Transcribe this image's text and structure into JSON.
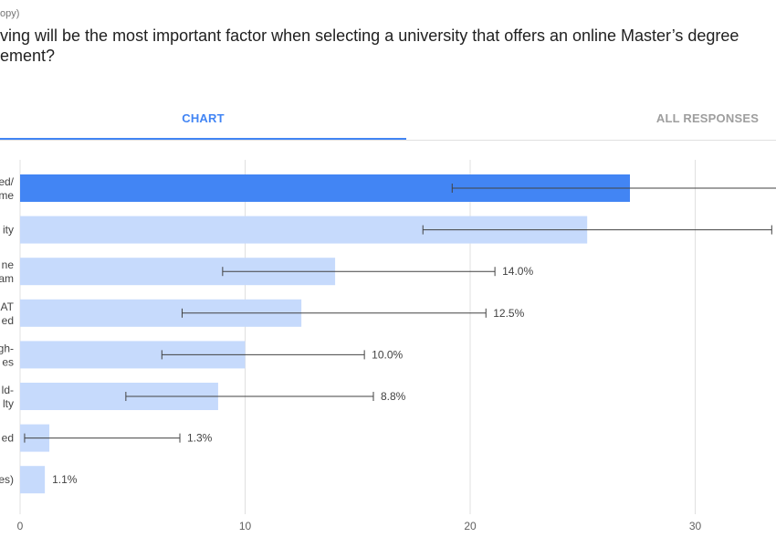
{
  "header": {
    "subtitle": "opy)",
    "question_line1": "ving will be the most important factor when selecting a university that offers an online Master’s degree",
    "question_line2": "ement?"
  },
  "tabs": [
    {
      "label": "CHART",
      "active": true
    },
    {
      "label": "ALL RESPONSES",
      "active": false
    }
  ],
  "colors": {
    "highlight_bar": "#4285f4",
    "bar": "#c6dafc",
    "error_bar": "#424242",
    "grid": "#e0e0e0"
  },
  "chart_data": {
    "type": "bar",
    "orientation": "horizontal",
    "categories": [
      [
        "ed/",
        "me"
      ],
      [
        "ity"
      ],
      [
        "ne",
        "am"
      ],
      [
        "AT",
        "ed"
      ],
      [
        "gh-",
        "es"
      ],
      [
        "ld-",
        "lty"
      ],
      [
        "ed"
      ],
      [
        "es)"
      ]
    ],
    "values": [
      27.1,
      25.2,
      14.0,
      12.5,
      10.0,
      8.8,
      1.3,
      1.1
    ],
    "value_labels": [
      "",
      "",
      "14.0%",
      "12.5%",
      "10.0%",
      "8.8%",
      "1.3%",
      "1.1%"
    ],
    "error_bars": [
      [
        19.2,
        35.0
      ],
      [
        17.9,
        33.4
      ],
      [
        9.0,
        21.1
      ],
      [
        7.2,
        20.7
      ],
      [
        6.3,
        15.3
      ],
      [
        4.7,
        15.7
      ],
      [
        0.2,
        7.1
      ],
      null
    ],
    "highlight_index": 0,
    "xlim": [
      0,
      35
    ],
    "xticks": [
      0,
      10,
      20,
      30
    ],
    "grid": true
  }
}
